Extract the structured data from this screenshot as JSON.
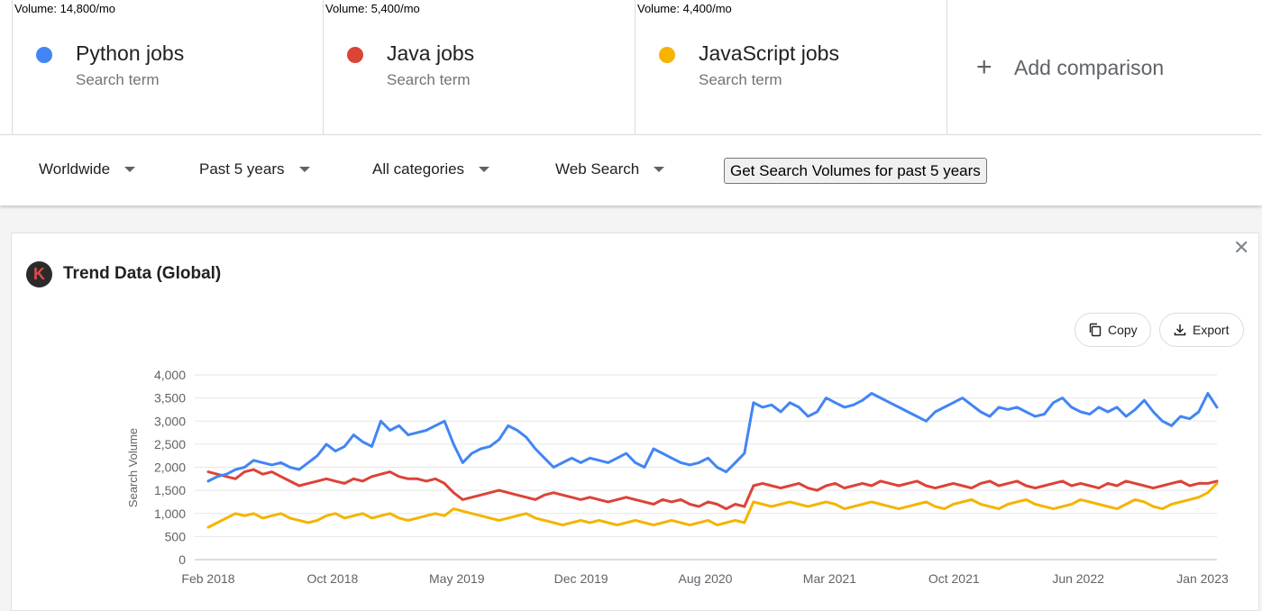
{
  "terms": [
    {
      "volume": "Volume: 14,800/mo",
      "name": "Python jobs",
      "sub": "Search term",
      "color": "#4285f4"
    },
    {
      "volume": "Volume: 5,400/mo",
      "name": "Java jobs",
      "sub": "Search term",
      "color": "#db4437"
    },
    {
      "volume": "Volume: 4,400/mo",
      "name": "JavaScript jobs",
      "sub": "Search term",
      "color": "#f4b400"
    }
  ],
  "add_comparison": {
    "label": "Add comparison",
    "icon": "plus-icon"
  },
  "filters": {
    "region": "Worldwide",
    "time": "Past 5 years",
    "category": "All categories",
    "search_type": "Web Search",
    "volumes_button": "Get Search Volumes for past 5 years"
  },
  "card": {
    "title": "Trend Data (Global)",
    "logo_letter": "K",
    "copy_label": "Copy",
    "export_label": "Export",
    "close_icon": "close-icon"
  },
  "chart_data": {
    "type": "line",
    "ylabel": "Search Volume",
    "ylim": [
      0,
      4000
    ],
    "y_ticks": [
      "0",
      "500",
      "1,000",
      "1,500",
      "2,000",
      "2,500",
      "3,000",
      "3,500",
      "4,000"
    ],
    "x_ticks": [
      "Feb 2018",
      "Oct 2018",
      "May 2019",
      "Dec 2019",
      "Aug 2020",
      "Mar 2021",
      "Oct 2021",
      "Jun 2022",
      "Jan 2023"
    ],
    "x_range": [
      "2018-02",
      "2023-01"
    ],
    "grid": true,
    "series": [
      {
        "name": "Python jobs",
        "color": "#4285f4",
        "values": [
          1700,
          1800,
          1850,
          1950,
          2000,
          2150,
          2100,
          2050,
          2100,
          2000,
          1950,
          2100,
          2250,
          2500,
          2350,
          2450,
          2700,
          2550,
          2450,
          3000,
          2800,
          2900,
          2700,
          2750,
          2800,
          2900,
          3000,
          2500,
          2100,
          2300,
          2400,
          2450,
          2600,
          2900,
          2800,
          2650,
          2400,
          2200,
          2000,
          2100,
          2200,
          2100,
          2200,
          2150,
          2100,
          2200,
          2300,
          2100,
          2000,
          2400,
          2300,
          2200,
          2100,
          2050,
          2100,
          2200,
          2000,
          1900,
          2100,
          2300,
          3400,
          3300,
          3350,
          3200,
          3400,
          3300,
          3100,
          3200,
          3500,
          3400,
          3300,
          3350,
          3450,
          3600,
          3500,
          3400,
          3300,
          3200,
          3100,
          3000,
          3200,
          3300,
          3400,
          3500,
          3350,
          3200,
          3100,
          3300,
          3250,
          3300,
          3200,
          3100,
          3150,
          3400,
          3500,
          3300,
          3200,
          3150,
          3300,
          3200,
          3300,
          3100,
          3250,
          3450,
          3200,
          3000,
          2900,
          3100,
          3050,
          3200,
          3600,
          3300
        ]
      },
      {
        "name": "Java jobs",
        "color": "#db4437",
        "values": [
          1900,
          1850,
          1800,
          1750,
          1900,
          1950,
          1850,
          1900,
          1800,
          1700,
          1600,
          1650,
          1700,
          1750,
          1700,
          1650,
          1750,
          1700,
          1800,
          1850,
          1900,
          1800,
          1750,
          1750,
          1700,
          1750,
          1650,
          1450,
          1300,
          1350,
          1400,
          1450,
          1500,
          1450,
          1400,
          1350,
          1300,
          1400,
          1450,
          1400,
          1350,
          1300,
          1350,
          1300,
          1250,
          1300,
          1350,
          1300,
          1250,
          1200,
          1300,
          1250,
          1300,
          1200,
          1150,
          1250,
          1200,
          1100,
          1200,
          1150,
          1600,
          1650,
          1600,
          1550,
          1600,
          1650,
          1550,
          1500,
          1600,
          1650,
          1550,
          1600,
          1650,
          1600,
          1700,
          1650,
          1600,
          1650,
          1700,
          1600,
          1550,
          1600,
          1650,
          1600,
          1550,
          1650,
          1700,
          1600,
          1650,
          1700,
          1600,
          1550,
          1600,
          1650,
          1700,
          1600,
          1650,
          1600,
          1550,
          1650,
          1600,
          1700,
          1650,
          1600,
          1550,
          1600,
          1650,
          1700,
          1600,
          1650,
          1650,
          1700
        ]
      },
      {
        "name": "JavaScript jobs",
        "color": "#f4b400",
        "values": [
          700,
          800,
          900,
          1000,
          950,
          1000,
          900,
          950,
          1000,
          900,
          850,
          800,
          850,
          950,
          1000,
          900,
          950,
          1000,
          900,
          950,
          1000,
          900,
          850,
          900,
          950,
          1000,
          950,
          1100,
          1050,
          1000,
          950,
          900,
          850,
          900,
          950,
          1000,
          900,
          850,
          800,
          750,
          800,
          850,
          800,
          850,
          800,
          750,
          800,
          850,
          800,
          750,
          800,
          850,
          800,
          750,
          800,
          850,
          750,
          800,
          850,
          800,
          1250,
          1200,
          1150,
          1200,
          1250,
          1200,
          1150,
          1200,
          1250,
          1200,
          1100,
          1150,
          1200,
          1250,
          1200,
          1150,
          1100,
          1150,
          1200,
          1250,
          1150,
          1100,
          1200,
          1250,
          1300,
          1200,
          1150,
          1100,
          1200,
          1250,
          1300,
          1200,
          1150,
          1100,
          1150,
          1200,
          1300,
          1250,
          1200,
          1150,
          1100,
          1200,
          1300,
          1250,
          1150,
          1100,
          1200,
          1250,
          1300,
          1350,
          1450,
          1650
        ]
      }
    ]
  }
}
